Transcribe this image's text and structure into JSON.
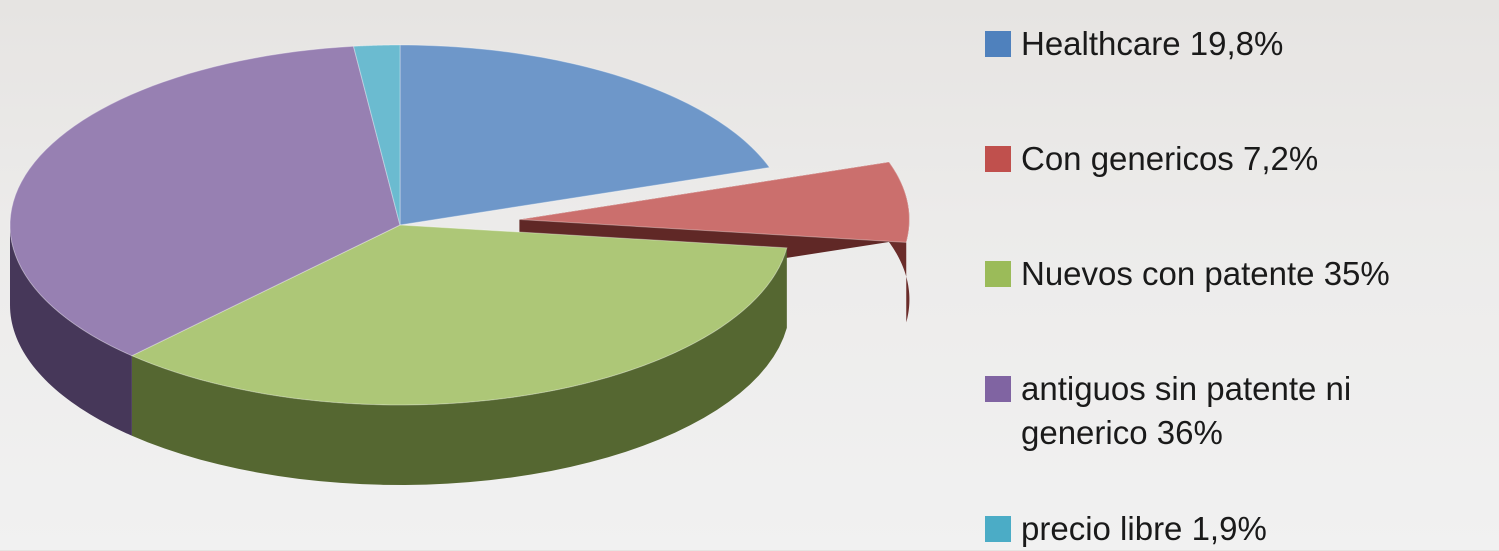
{
  "chart_data": {
    "type": "pie",
    "categories": [
      "Healthcare 19,8%",
      "Con genericos 7,2%",
      "Nuevos con patente 35%",
      "antiguos sin patente ni generico 36%",
      "precio libre 1,9%"
    ],
    "values": [
      19.8,
      7.2,
      35,
      36,
      1.9
    ],
    "colors": [
      "#4f81bd",
      "#c0504d",
      "#9bbb59",
      "#8064a2",
      "#4bacc6"
    ]
  }
}
